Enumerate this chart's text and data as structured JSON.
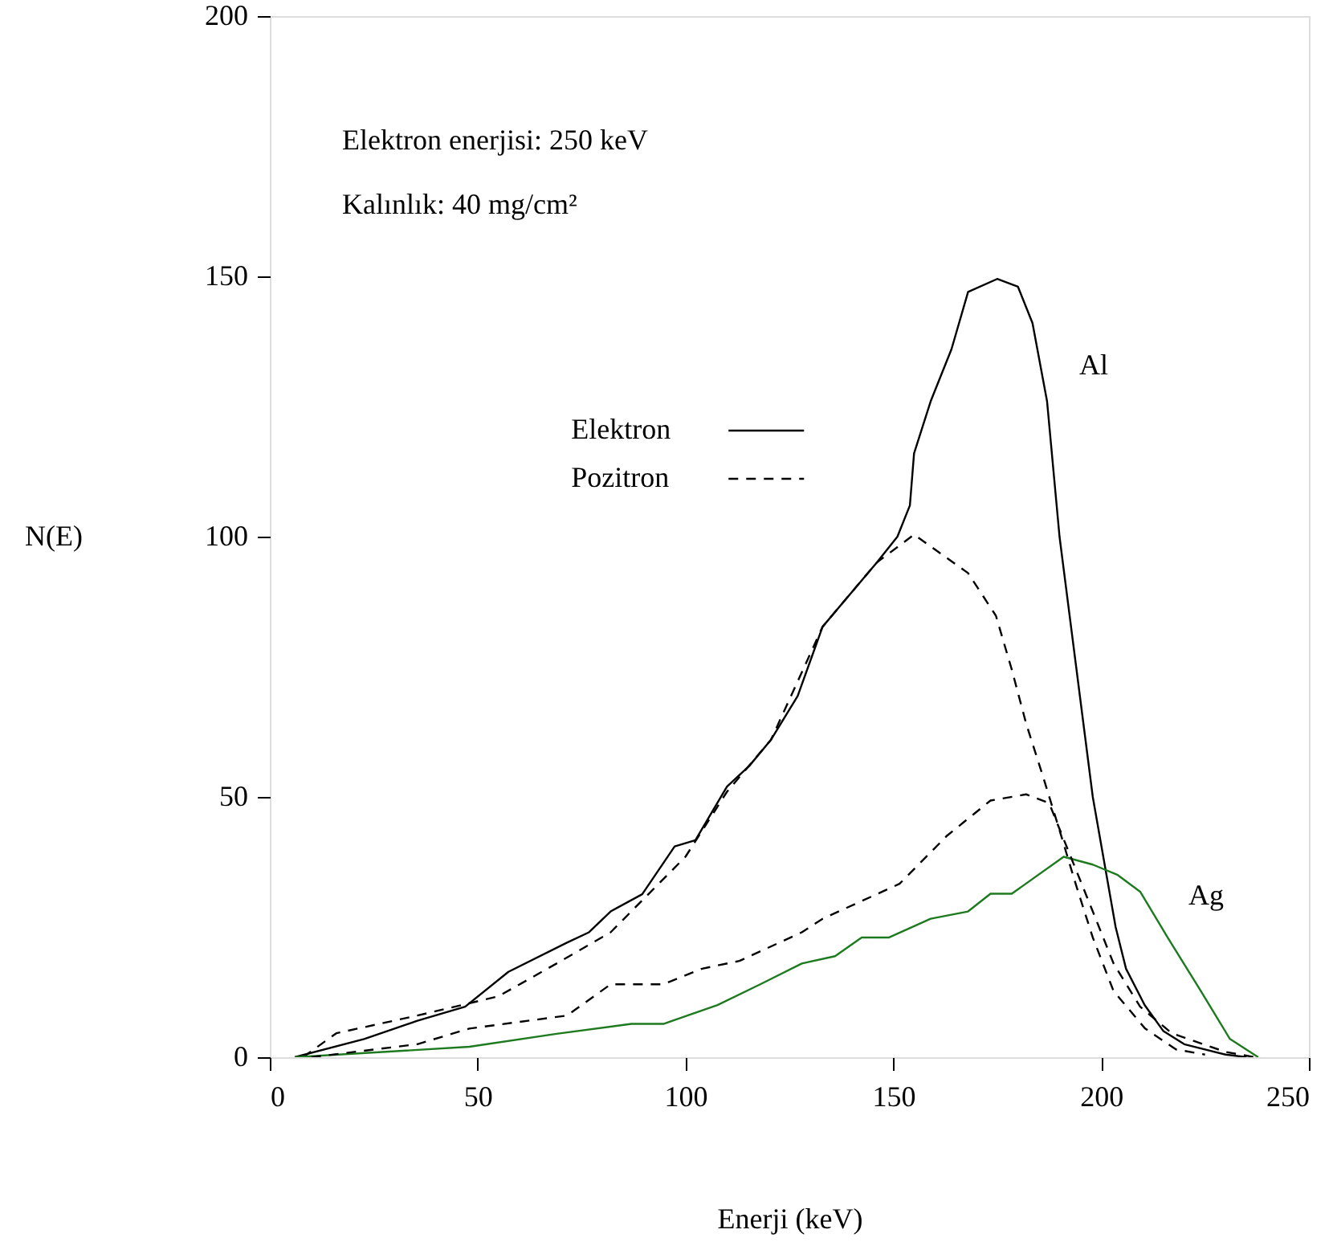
{
  "chart_data": {
    "type": "line",
    "xlabel": "Enerji (keV)",
    "ylabel": "N(E)",
    "xlim": [
      0,
      250
    ],
    "xticks": [
      0,
      50,
      100,
      150,
      200,
      250
    ],
    "ylim": [
      0,
      200
    ],
    "yticks": [
      0,
      50,
      100,
      150,
      200
    ],
    "grid": false,
    "legend": "top",
    "marker": "none",
    "annotations": [
      "Elektron enerjisi: 250 keV",
      "Kalınlık: 40 mg/cm²",
      "Al",
      "Ag"
    ],
    "series": [
      {
        "name": "Elektron",
        "color": "#000000",
        "line_style": "solid",
        "x": [
          6,
          22.7,
          35.5,
          47,
          57.4,
          71.5,
          76.8,
          82,
          89.6,
          97.4,
          102.4,
          110,
          115.4,
          120.6,
          127,
          133,
          146,
          151,
          154,
          155,
          159,
          164,
          168,
          175,
          180,
          183.5,
          187,
          190,
          194,
          198,
          203.5,
          206,
          210.5,
          215,
          220,
          230,
          235
        ],
        "values": [
          0,
          3.5,
          7,
          9.7,
          16.4,
          22,
          24,
          28,
          31.3,
          40.5,
          41.7,
          52,
          56,
          61,
          69.4,
          82.7,
          95,
          100,
          106,
          116,
          126,
          136,
          147,
          149.5,
          148,
          141,
          126,
          100,
          75,
          50,
          25,
          17,
          10,
          5,
          2.5,
          0.5,
          0
        ]
      },
      {
        "name": "Pozitron",
        "color": "#000000",
        "line_style": "dashed",
        "x": [
          8,
          16,
          35.5,
          55,
          69,
          82,
          100,
          110,
          120.6,
          133,
          146,
          155,
          168,
          174.7,
          178.5,
          182,
          186,
          190,
          194,
          198,
          203,
          210.6,
          218,
          225
        ],
        "values": [
          0,
          4.6,
          8,
          11.7,
          18,
          24,
          38.5,
          51,
          61,
          82.7,
          95,
          100.4,
          93,
          84.8,
          74.5,
          64,
          54,
          43.6,
          33,
          23,
          12.7,
          5.5,
          1.5,
          0.5
        ]
      },
      {
        "color": "#1e7a1e",
        "line_style": "solid",
        "x": [
          6,
          48,
          69,
          87,
          94.7,
          107.7,
          118,
          128,
          136,
          142.4,
          149,
          159,
          168,
          173.4,
          178.5,
          191,
          198,
          204,
          209.4,
          216,
          224,
          231,
          237.8
        ],
        "values": [
          0,
          2,
          4.5,
          6.4,
          6.4,
          10,
          14,
          18,
          19.4,
          23,
          23,
          26.6,
          28,
          31.4,
          31.4,
          38.5,
          37,
          35,
          31.8,
          23,
          12.7,
          3.5,
          0
        ]
      },
      {
        "color": "#000000",
        "line_style": "dashed",
        "x": [
          10,
          35.5,
          48,
          71.5,
          82,
          94.7,
          104,
          113,
          128,
          133,
          151.5,
          163,
          173.4,
          182,
          187.5,
          192.7,
          198,
          203,
          209.4,
          217,
          230,
          237
        ],
        "values": [
          0,
          2.5,
          5.5,
          8,
          14,
          14,
          17,
          18.5,
          24,
          26.6,
          33.3,
          42.6,
          49.3,
          50.5,
          48.8,
          38.5,
          28,
          18,
          9.7,
          4.6,
          1,
          0
        ]
      }
    ]
  }
}
